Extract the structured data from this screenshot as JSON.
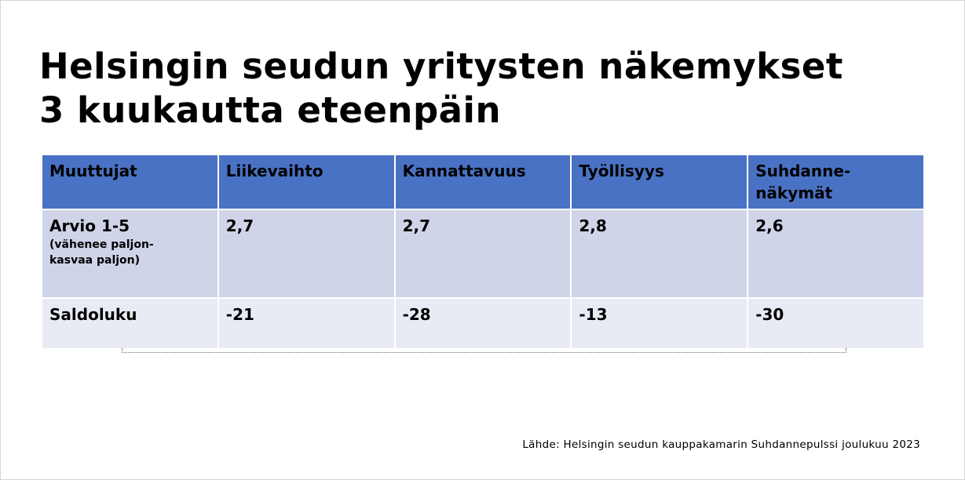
{
  "title": {
    "line1": "Helsingin seudun yritysten näkemykset",
    "line2": "3 kuukautta eteenpäin"
  },
  "table": {
    "headers": [
      "Muuttujat",
      "Liikevaihto",
      "Kannattavuus",
      "Työllisyys",
      "Suhdanne-\nnäkymät"
    ],
    "rows": [
      {
        "label": "Arvio 1-5",
        "sublabel": "(vähenee paljon-\nkasvaa paljon)",
        "values": [
          "2,7",
          "2,7",
          "2,8",
          "2,6"
        ]
      },
      {
        "label": "Saldoluku",
        "values": [
          "-21",
          "-28",
          "-13",
          "-30"
        ]
      }
    ]
  },
  "source": "Lähde: Helsingin seudun kauppakamarin Suhdannepulssi joulukuu 2023",
  "colors": {
    "header_bg": "#4a72c4",
    "row1_bg": "#d0d4e8",
    "row2_bg": "#e8ebf4"
  }
}
